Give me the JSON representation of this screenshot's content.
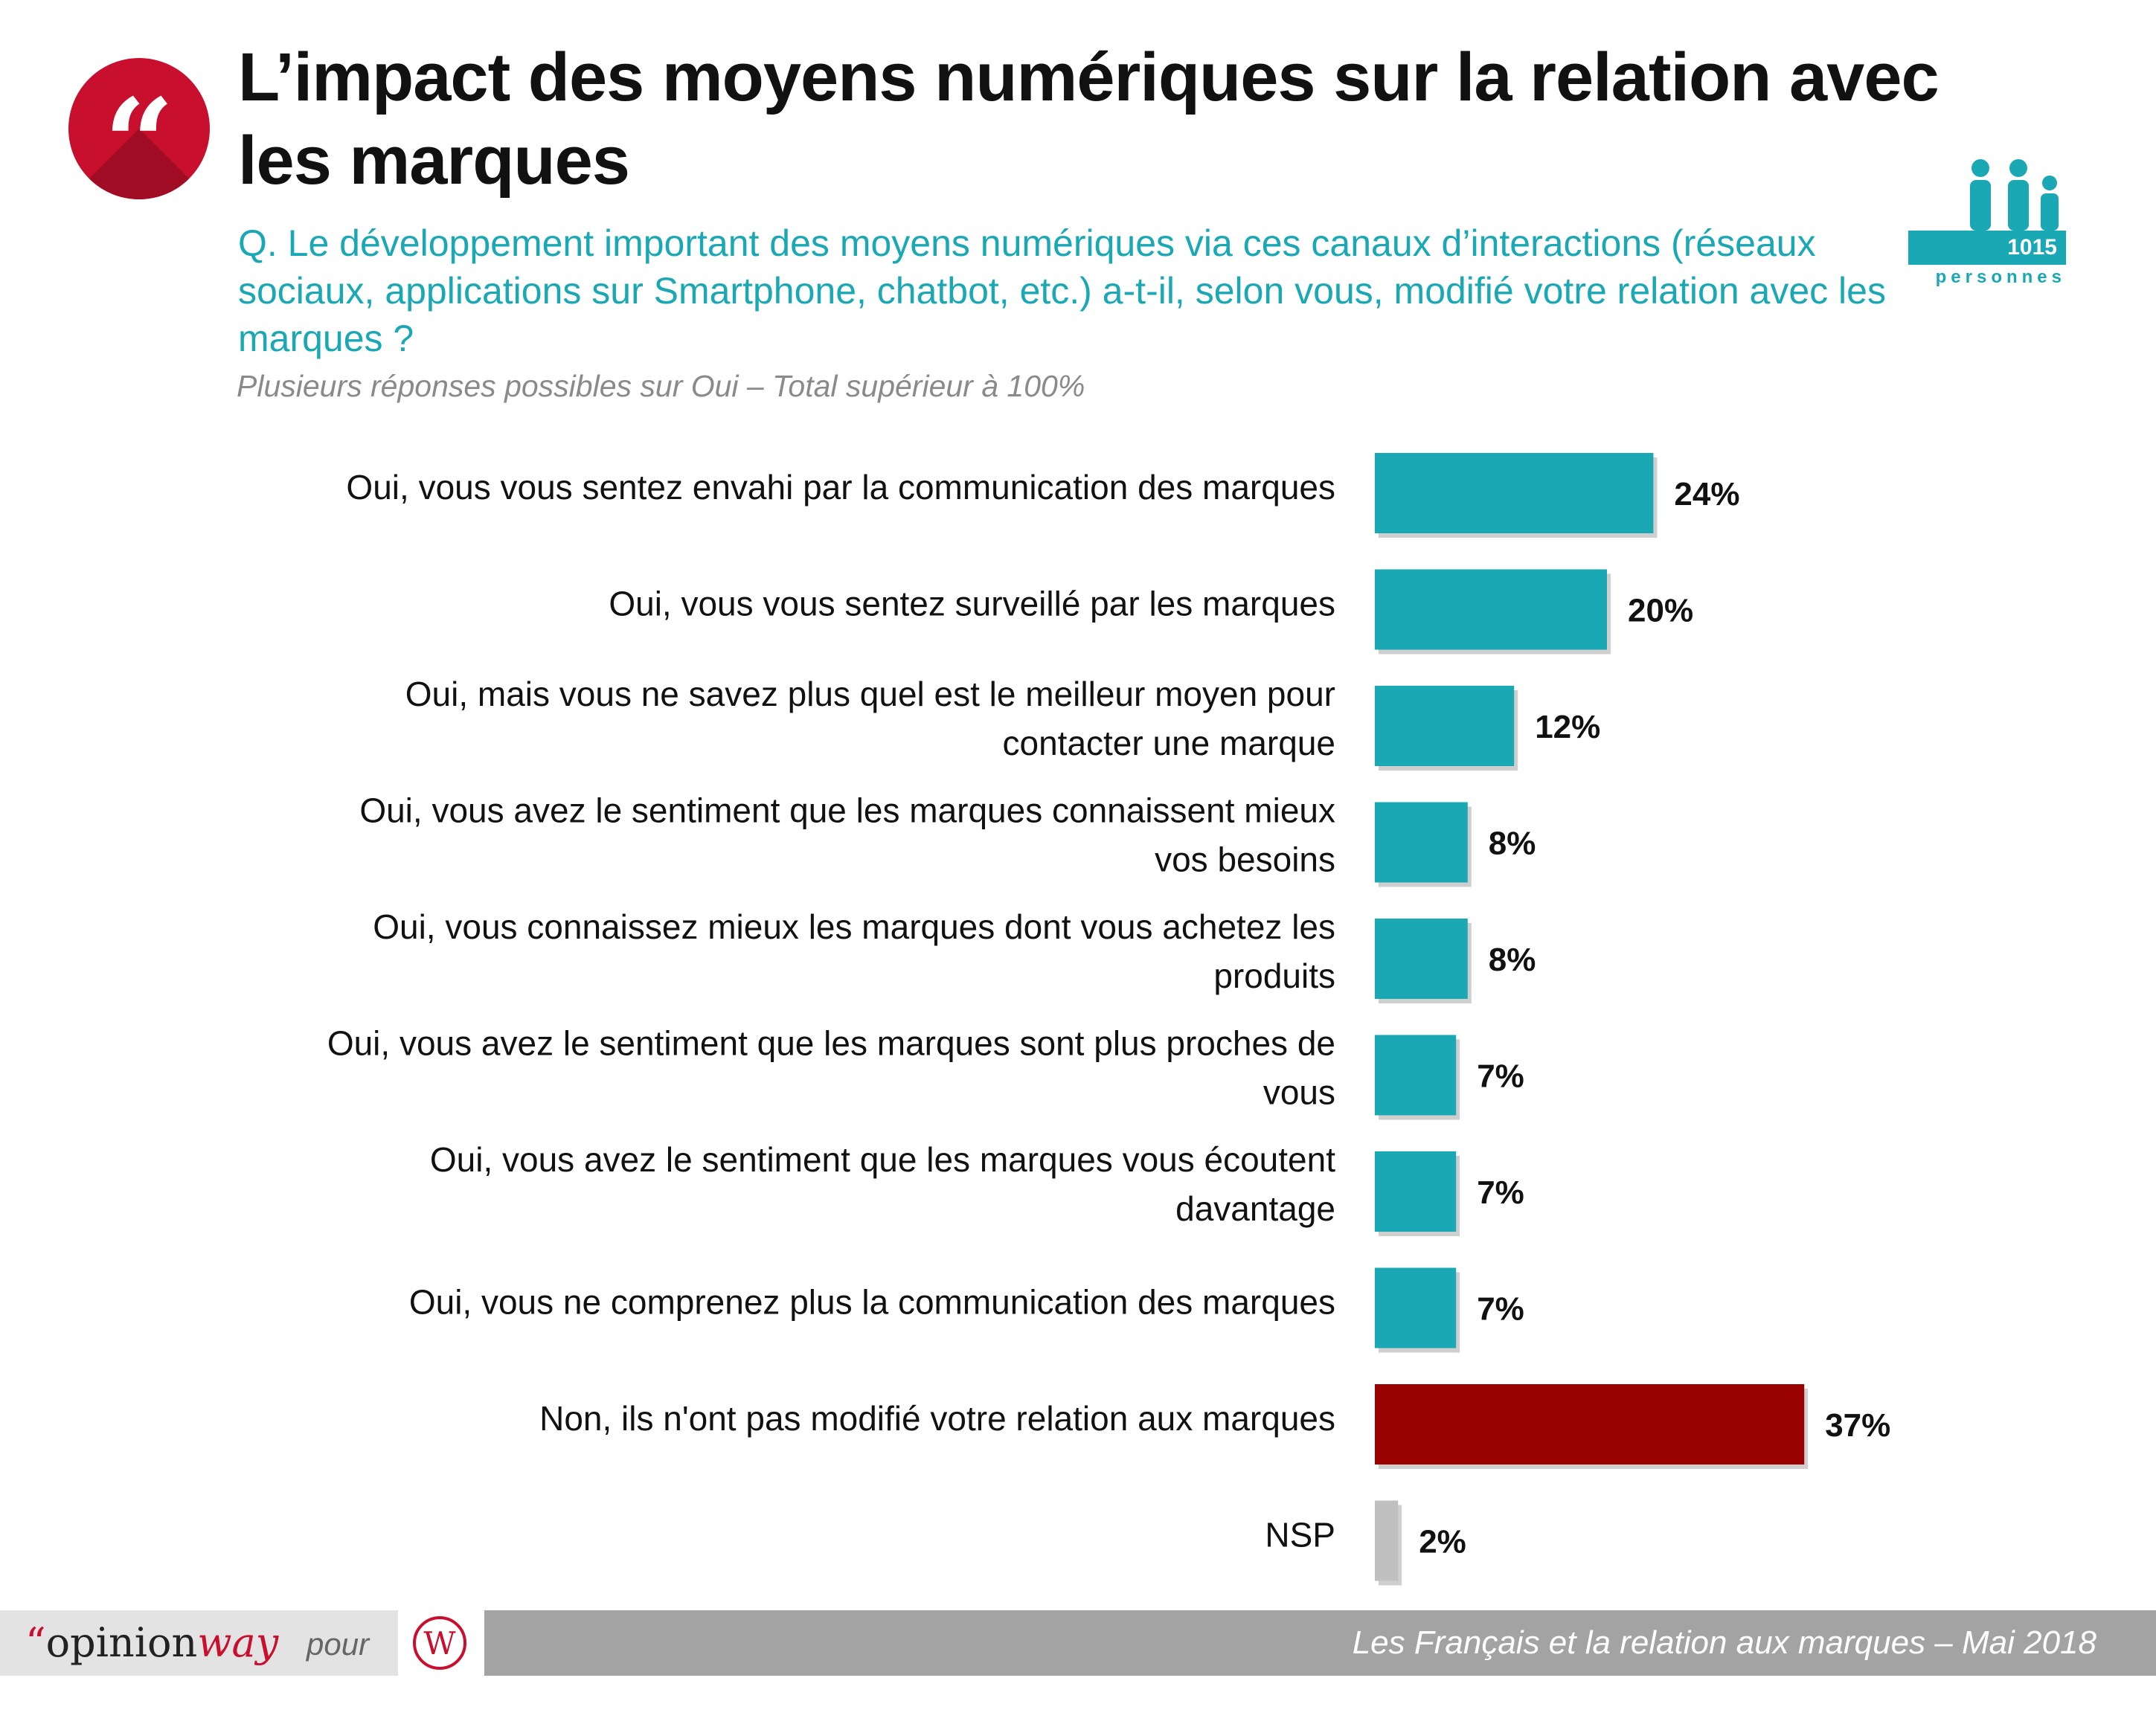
{
  "header": {
    "title": "L’impact des moyens numériques sur la relation avec les marques",
    "question": "Q. Le développement important des moyens numériques via ces canaux d’interactions (réseaux sociaux, applications sur Smartphone, chatbot, etc.) a-t-il, selon vous, modifié votre relation avec les marques ?",
    "note": "Plusieurs réponses possibles sur Oui – Total supérieur à 100%",
    "quote_glyph": "“"
  },
  "sample": {
    "count": "1015",
    "unit": "personnes",
    "icon": "people-icon"
  },
  "footer": {
    "brand_quote": "“",
    "brand_main": "opinion",
    "brand_accent": "way",
    "pour": "pour",
    "caption": "Les Français et la relation aux marques – Mai 2018",
    "client_logo": "W"
  },
  "colors": {
    "teal": "#1aa8b4",
    "darkred": "#990000",
    "gray": "#c0c0c0",
    "accent": "#c8102e"
  },
  "chart_data": {
    "type": "bar",
    "orientation": "horizontal",
    "unit": "%",
    "xlim": [
      0,
      40
    ],
    "grid": false,
    "categories": [
      [
        "Oui, vous vous sentez envahi par la communication des marques"
      ],
      [
        "Oui, vous vous sentez surveillé par les marques"
      ],
      [
        "Oui, mais vous ne savez plus quel est le meilleur moyen pour",
        "contacter une marque"
      ],
      [
        "Oui, vous avez le sentiment que les marques connaissent mieux",
        "vos besoins"
      ],
      [
        "Oui, vous connaissez mieux les marques dont vous achetez les",
        "produits"
      ],
      [
        "Oui, vous avez le sentiment que les marques sont plus proches de",
        "vous"
      ],
      [
        "Oui, vous avez le sentiment que les marques vous écoutent",
        "davantage"
      ],
      [
        "Oui, vous ne comprenez plus la communication des marques"
      ],
      [
        "Non, ils n'ont pas modifié votre relation aux marques"
      ],
      [
        "NSP"
      ]
    ],
    "values": [
      24,
      20,
      12,
      8,
      8,
      7,
      7,
      7,
      37,
      2
    ],
    "value_labels": [
      "24%",
      "20%",
      "12%",
      "8%",
      "8%",
      "7%",
      "7%",
      "7%",
      "37%",
      "2%"
    ],
    "bar_colors": [
      "teal",
      "teal",
      "teal",
      "teal",
      "teal",
      "teal",
      "teal",
      "teal",
      "darkred",
      "gray"
    ]
  }
}
